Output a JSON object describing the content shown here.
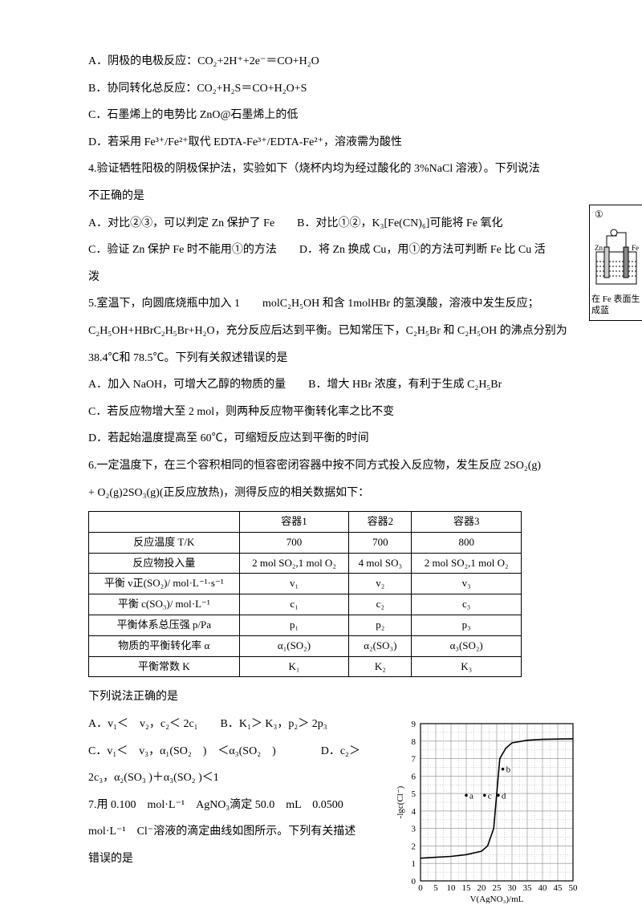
{
  "q3": {
    "A": "A．阴极的电极反应：CO₂+2H⁺+2e⁻＝CO+H₂O",
    "B": "B．协同转化总反应：CO₂+H₂S＝CO+H₂O+S",
    "C": "C．石墨烯上的电势比 ZnO@石墨烯上的低",
    "D": "D．若采用 Fe³⁺/Fe²⁺取代 EDTA-Fe³⁺/EDTA-Fe²⁺，溶液需为酸性"
  },
  "q4": {
    "stem1": "4.验证牺牲阳极的阴极保护法，实验如下（烧杯内均为经过酸化的 3%NaCl 溶液）。下列说法",
    "stem2": "不正确的是",
    "A": "A．对比②③，可以判定 Zn 保护了 Fe　　B．对比①②，K₃[Fe(CN)₆]可能将 Fe 氧化",
    "C": "C．验证 Zn 保护 Fe 时不能用①的方法　　D．将 Zn 换成 Cu，用①的方法可判断 Fe 比 Cu 活",
    "Cend": "泼"
  },
  "q5": {
    "l1": "5.室温下，向圆底烧瓶中加入 1　　molC₂H₅OH 和含 1molHBr 的氢溴酸，溶液中发生反应；",
    "l2": "C₂H₅OH+HBrC₂H₅Br+H₂O，充分反应后达到平衡。已知常压下，C₂H₅Br 和 C₂H₅OH 的沸点分别为",
    "l3": "38.4℃和 78.5℃。下列有关叙述错误的是",
    "A": "A．加入 NaOH，可增大乙醇的物质的量　　B．增大 HBr 浓度，有利于生成 C₂H₅Br",
    "C": "C．若反应物增大至 2 mol，则两种反应物平衡转化率之比不变",
    "D": "D．若起始温度提高至 60℃，可缩短反应达到平衡的时间"
  },
  "q6": {
    "l1": "6.一定温度下，在三个容积相同的恒容密闭容器中按不同方式投入反应物，发生反应 2SO₂(g)",
    "l2": "+ O₂(g)2SO₃(g)(正反应放热)，测得反应的相关数据如下：",
    "table": {
      "headers": [
        "",
        "容器1",
        "容器2",
        "容器3"
      ],
      "rows": [
        [
          "反应温度 T/K",
          "700",
          "700",
          "800"
        ],
        [
          "反应物投入量",
          "2 mol SO₂,1 mol O₂",
          "4 mol SO₃",
          "2 mol SO₂,1 mol O₂"
        ],
        [
          "平衡 v正(SO₂)/ mol·L⁻¹·s⁻¹",
          "v₁",
          "v₂",
          "v₃"
        ],
        [
          "平衡 c(SO₃)/ mol·L⁻¹",
          "c₁",
          "c₂",
          "c₃"
        ],
        [
          "平衡体系总压强 p/Pa",
          "p₁",
          "p₂",
          "p₃"
        ],
        [
          "物质的平衡转化率 α",
          "α₁(SO₂)",
          "α₂(SO₃)",
          "α₃(SO₂)"
        ],
        [
          "平衡常数 K",
          "K₁",
          "K₂",
          "K₃"
        ]
      ]
    },
    "post": "下列说法正确的是",
    "A": "A．v₁＜　v₂，c₂＜ 2c₁　　B．K₁＞ K₃，p₂＞ 2p₃",
    "C": "C．v₁＜　v₃，α₁(SO₂　)　＜α₃(SO₂　)　　　　D．c₂＞",
    "Cend": "2c₃，α₂(SO₃ )＋α₃(SO₂ )＜1"
  },
  "q7": {
    "l1": "7.用 0.100　mol·L⁻¹　AgNO₃滴定 50.0　mL　0.0500",
    "l2": "mol·L⁻¹　Cl⁻溶液的滴定曲线如图所示。下列有关描述",
    "l3": "错误的是"
  },
  "chart": {
    "type": "line",
    "xlabel": "V(AgNO₃)/mL",
    "ylabel": "-lgc(Cl⁻)",
    "xlim": [
      0,
      50
    ],
    "xtick_step": 5,
    "ylim": [
      0,
      9
    ],
    "ytick_step": 1,
    "grid_color": "#888888",
    "background_color": "#ffffff",
    "curve_color": "#000000",
    "points": [
      {
        "x": 0,
        "y": 1.3
      },
      {
        "x": 5,
        "y": 1.35
      },
      {
        "x": 10,
        "y": 1.4
      },
      {
        "x": 15,
        "y": 1.5
      },
      {
        "x": 20,
        "y": 1.7
      },
      {
        "x": 22,
        "y": 2.0
      },
      {
        "x": 24,
        "y": 3.0
      },
      {
        "x": 25,
        "y": 5.0
      },
      {
        "x": 26,
        "y": 7.0
      },
      {
        "x": 28,
        "y": 7.6
      },
      {
        "x": 30,
        "y": 7.9
      },
      {
        "x": 35,
        "y": 8.05
      },
      {
        "x": 40,
        "y": 8.1
      },
      {
        "x": 45,
        "y": 8.12
      },
      {
        "x": 50,
        "y": 8.13
      }
    ],
    "marked_points": [
      {
        "label": "a",
        "x": 15,
        "y": 4.9
      },
      {
        "label": "b",
        "x": 27,
        "y": 6.4
      },
      {
        "label": "c",
        "x": 21,
        "y": 4.9
      },
      {
        "label": "d",
        "x": 25.5,
        "y": 4.9
      }
    ],
    "axis_fontsize": 11
  },
  "sidebox": {
    "label_top": "①",
    "caption": "在 Fe 表面生成蓝",
    "electrodes": [
      "Zn",
      "Fe"
    ]
  },
  "colors": {
    "text": "#000000",
    "bg": "#ffffff",
    "border": "#000000"
  }
}
